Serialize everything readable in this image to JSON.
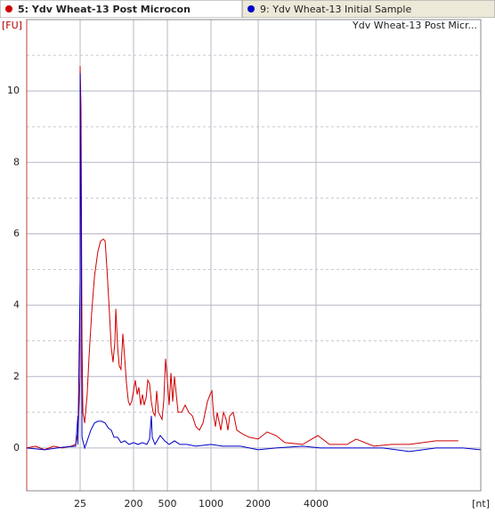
{
  "chart_data": {
    "type": "line",
    "title": "Ydv Wheat-13 Post Micr...",
    "y_label": "[FU]",
    "x_label": "[nt]",
    "xlim": [
      1,
      9700
    ],
    "xticks": [
      25,
      200,
      500,
      1000,
      2000,
      4000
    ],
    "ylim": [
      -1.2,
      12
    ],
    "yticks": [
      0,
      2,
      4,
      6,
      8,
      10
    ],
    "grid": true,
    "series": [
      {
        "name": "5: Ydv Wheat-13 Post Microcon",
        "color": "#d00000",
        "x": [
          1,
          5,
          9,
          13,
          17,
          21,
          23,
          24,
          25,
          25,
          28,
          31,
          34,
          40,
          48,
          54,
          63,
          72,
          83,
          92,
          101,
          107,
          113,
          121,
          127,
          133,
          139,
          142,
          148,
          153,
          159,
          165,
          171,
          177,
          183,
          188,
          194,
          200,
          216,
          232,
          247,
          263,
          279,
          295,
          311,
          326,
          342,
          358,
          374,
          390,
          405,
          421,
          453,
          468,
          484,
          500,
          520,
          541,
          561,
          582,
          602,
          622,
          663,
          704,
          745,
          786,
          827,
          867,
          908,
          959,
          990,
          1019,
          1057,
          1094,
          1132,
          1208,
          1264,
          1321,
          1359,
          1396,
          1472,
          1547,
          1660,
          1811,
          2000,
          2308,
          2615,
          2923,
          3538,
          4062,
          4462,
          5077,
          5385,
          6000,
          6615,
          7231,
          8154,
          8923
        ],
        "values": [
          0,
          0.05,
          -0.05,
          0.05,
          0,
          0.05,
          0.1,
          0.4,
          2,
          10.7,
          9.5,
          3,
          1,
          0.7,
          1.5,
          2.5,
          3.8,
          4.8,
          5.5,
          5.8,
          5.85,
          5.8,
          5,
          3.8,
          2.8,
          2.4,
          3,
          3.9,
          2.8,
          2.3,
          2.2,
          3.2,
          2.5,
          1.8,
          1.3,
          1.2,
          1.3,
          1.6,
          1.9,
          1.5,
          1.7,
          1.2,
          1.5,
          1.2,
          1.4,
          1.9,
          1.8,
          1.3,
          1,
          0.9,
          1.6,
          1,
          0.8,
          1.3,
          2.5,
          1.9,
          1.2,
          2.1,
          1.3,
          2,
          1.5,
          1,
          1,
          1.2,
          1,
          0.9,
          0.6,
          0.5,
          0.7,
          1.3,
          1.5,
          1.6,
          0.9,
          0.6,
          1,
          0.5,
          1,
          0.8,
          0.5,
          0.9,
          1,
          0.5,
          0.4,
          0.3,
          0.25,
          0.45,
          0.35,
          0.15,
          0.1,
          0.35,
          0.1,
          0.1,
          0.25,
          0.05,
          0.1,
          0.1,
          0.2,
          0.2
        ]
      },
      {
        "name": "9: Ydv Wheat-13 Initial Sample",
        "color": "#0000c8",
        "x": [
          1,
          9,
          17,
          23,
          24,
          24,
          25,
          25,
          28,
          31,
          40,
          48,
          60,
          72,
          83,
          95,
          107,
          118,
          127,
          136,
          148,
          159,
          171,
          185,
          200,
          239,
          279,
          318,
          342,
          358,
          366,
          390,
          437,
          476,
          520,
          582,
          643,
          724,
          827,
          1000,
          1245,
          1623,
          2000,
          2615,
          3538,
          4154,
          5385,
          6308,
          7231,
          8154,
          9077,
          9692
        ],
        "values": [
          0,
          -0.05,
          0.02,
          0.05,
          0.9,
          0.1,
          4.7,
          10.5,
          7,
          0.3,
          0,
          0.2,
          0.5,
          0.7,
          0.75,
          0.75,
          0.7,
          0.55,
          0.5,
          0.3,
          0.3,
          0.15,
          0.2,
          0.1,
          0.15,
          0.1,
          0.15,
          0.1,
          0.25,
          0.9,
          0.3,
          0.1,
          0.35,
          0.2,
          0.1,
          0.2,
          0.1,
          0.1,
          0.05,
          0.1,
          0.05,
          0.05,
          -0.05,
          0,
          0.05,
          0,
          0,
          0,
          -0.1,
          0,
          0,
          -0.05
        ]
      }
    ]
  }
}
